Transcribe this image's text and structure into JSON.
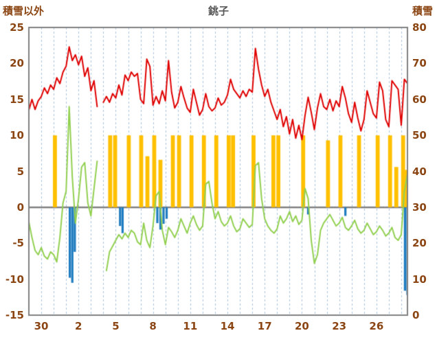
{
  "chart_data": {
    "type": "line",
    "title": "銚子",
    "left_axis": {
      "label": "積雪以外",
      "min": -15,
      "max": 25,
      "ticks": [
        25,
        20,
        15,
        10,
        5,
        0,
        -5,
        -10,
        -15
      ]
    },
    "right_axis": {
      "label": "積雪",
      "min": 0,
      "max": 80,
      "ticks": [
        80,
        70,
        60,
        50,
        40,
        30,
        20,
        10,
        0
      ]
    },
    "x_axis": {
      "domain": [
        0,
        30.5
      ],
      "gridline_step": 1,
      "tick_positions": [
        1,
        4,
        7,
        10,
        13,
        16,
        19,
        22,
        25,
        28
      ],
      "tick_labels": [
        "30",
        "2",
        "5",
        "8",
        "11",
        "14",
        "17",
        "20",
        "23",
        "26"
      ]
    },
    "sample_step_days": 0.25,
    "legend_position": "none",
    "series": [
      {
        "name": "red-line",
        "type": "line",
        "color": "#E00000",
        "line_width": 2,
        "values": [
          13.5,
          15.0,
          13.6,
          14.8,
          15.4,
          16.6,
          15.8,
          17.0,
          16.4,
          18.0,
          17.2,
          18.8,
          19.6,
          22.3,
          20.4,
          21.2,
          19.8,
          21.0,
          18.2,
          19.4,
          16.2,
          17.6,
          14.0,
          null,
          14.6,
          15.4,
          14.6,
          15.8,
          15.2,
          17.0,
          15.6,
          18.4,
          17.6,
          18.8,
          18.2,
          18.6,
          15.0,
          14.4,
          20.6,
          19.6,
          14.2,
          15.4,
          14.4,
          16.2,
          14.8,
          20.4,
          16.0,
          13.8,
          14.6,
          16.8,
          15.2,
          13.8,
          13.2,
          16.4,
          14.6,
          12.8,
          13.6,
          15.8,
          14.0,
          13.4,
          13.8,
          15.2,
          14.2,
          14.6,
          15.6,
          17.8,
          16.4,
          15.8,
          15.2,
          16.2,
          15.4,
          16.4,
          16.0,
          22.1,
          19.2,
          17.0,
          15.4,
          16.4,
          14.6,
          13.4,
          12.2,
          13.6,
          11.2,
          12.6,
          10.2,
          12.2,
          9.6,
          11.4,
          9.4,
          12.8,
          15.3,
          13.2,
          10.8,
          13.8,
          15.8,
          14.0,
          13.6,
          15.0,
          13.4,
          14.8,
          14.0,
          16.8,
          15.2,
          13.0,
          11.8,
          14.6,
          12.4,
          10.6,
          12.2,
          16.2,
          14.6,
          13.0,
          12.4,
          17.4,
          16.2,
          12.2,
          11.2,
          17.6,
          17.0,
          16.4,
          11.4,
          17.8,
          17.2
        ]
      },
      {
        "name": "green-line",
        "type": "line",
        "color": "#92D050",
        "line_width": 2,
        "values": [
          -2.0,
          -4.2,
          -6.0,
          -6.6,
          -5.6,
          -6.8,
          -7.2,
          -6.2,
          -6.6,
          -7.6,
          -4.2,
          0.6,
          2.2,
          14.0,
          4.2,
          -2.2,
          1.2,
          5.6,
          6.2,
          0.6,
          -1.2,
          2.6,
          6.4,
          null,
          null,
          -8.8,
          -6.2,
          -5.4,
          -4.6,
          -3.8,
          -4.4,
          -3.6,
          -4.2,
          -3.2,
          -3.6,
          -4.8,
          -5.2,
          -2.2,
          -4.6,
          -5.6,
          -2.6,
          1.6,
          2.2,
          -3.2,
          -5.2,
          -2.8,
          -3.4,
          -4.2,
          -3.2,
          -1.6,
          -2.6,
          -3.6,
          -2.2,
          -1.2,
          -2.4,
          -3.2,
          -2.6,
          3.2,
          3.6,
          0.6,
          -1.6,
          -0.6,
          -2.0,
          -2.6,
          -2.2,
          -1.2,
          -2.6,
          -3.4,
          -3.0,
          -1.6,
          -2.2,
          -2.8,
          -2.4,
          5.8,
          6.2,
          1.2,
          -1.6,
          -2.6,
          -3.2,
          -3.6,
          -3.0,
          -1.2,
          -2.2,
          -1.6,
          -0.6,
          -2.0,
          -1.2,
          -2.4,
          -1.8,
          2.6,
          1.2,
          -4.6,
          -7.8,
          -6.6,
          -3.2,
          -2.2,
          -1.6,
          -1.0,
          -1.8,
          -2.6,
          -2.2,
          -1.4,
          -2.8,
          -3.2,
          -2.6,
          -1.8,
          -3.0,
          -3.6,
          -3.2,
          -2.2,
          -3.0,
          -3.8,
          -3.4,
          -2.6,
          -3.2,
          -4.0,
          -3.6,
          -2.8,
          -4.2,
          -4.6,
          -3.8,
          2.2,
          4.6
        ]
      },
      {
        "name": "orange-bars",
        "type": "bar",
        "color": "#FFC000",
        "bar_width_days": 0.32,
        "points": [
          {
            "x": 2.1,
            "v": 10
          },
          {
            "x": 6.55,
            "v": 10
          },
          {
            "x": 6.95,
            "v": 10
          },
          {
            "x": 8.05,
            "v": 10
          },
          {
            "x": 9.05,
            "v": 10
          },
          {
            "x": 9.55,
            "v": 7.1
          },
          {
            "x": 10.1,
            "v": 10
          },
          {
            "x": 10.6,
            "v": 6.6
          },
          {
            "x": 11.6,
            "v": 10
          },
          {
            "x": 12.1,
            "v": 10
          },
          {
            "x": 13.1,
            "v": 10
          },
          {
            "x": 14.1,
            "v": 10
          },
          {
            "x": 15.1,
            "v": 10
          },
          {
            "x": 16.1,
            "v": 10
          },
          {
            "x": 16.45,
            "v": 10
          },
          {
            "x": 18.1,
            "v": 10
          },
          {
            "x": 19.7,
            "v": 10
          },
          {
            "x": 20.1,
            "v": 10
          },
          {
            "x": 22.1,
            "v": 10
          },
          {
            "x": 24.1,
            "v": 9.3
          },
          {
            "x": 25.1,
            "v": 10
          },
          {
            "x": 26.6,
            "v": 10
          },
          {
            "x": 28.1,
            "v": 10
          },
          {
            "x": 29.1,
            "v": 10
          },
          {
            "x": 29.6,
            "v": 5.6
          },
          {
            "x": 30.15,
            "v": 10
          },
          {
            "x": 30.45,
            "v": 5.2
          }
        ]
      },
      {
        "name": "blue-bars",
        "type": "bar",
        "color": "#1F7CC0",
        "bar_width_days": 0.18,
        "points": [
          {
            "x": 3.3,
            "v": -9.8
          },
          {
            "x": 3.5,
            "v": -10.5
          },
          {
            "x": 3.7,
            "v": -6.2
          },
          {
            "x": 7.35,
            "v": -2.6
          },
          {
            "x": 7.55,
            "v": -3.6
          },
          {
            "x": 10.35,
            "v": -2.2
          },
          {
            "x": 10.6,
            "v": -3.1
          },
          {
            "x": 10.85,
            "v": -2.3
          },
          {
            "x": 11.1,
            "v": -1.6
          },
          {
            "x": 22.5,
            "v": -1.0
          },
          {
            "x": 25.5,
            "v": -1.2
          },
          {
            "x": 30.3,
            "v": -11.6
          },
          {
            "x": 30.5,
            "v": -12.2
          }
        ]
      }
    ],
    "colors": {
      "red_line": "#E00000",
      "green_line": "#92D050",
      "orange_bar": "#FFC000",
      "blue_bar": "#1F7CC0",
      "axis_text": "#8B4513",
      "title_text": "#595959",
      "gridline": "#A8C4DC",
      "border": "#808080",
      "zero_line": "#808080",
      "background": "#FFFFFF"
    }
  }
}
